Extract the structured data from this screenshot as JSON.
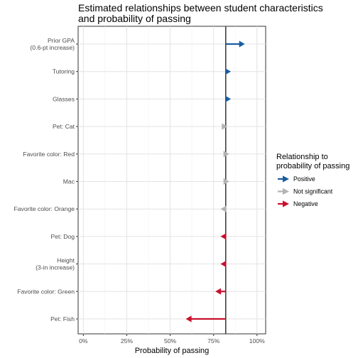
{
  "chart_data": {
    "type": "arrow-dot",
    "title": "Estimated relationships between student characteristics\nand probability of passing",
    "xlabel": "Probability of passing",
    "ylabel": "",
    "xlim": [
      -0.03,
      1.05
    ],
    "x_ticks": [
      {
        "value": 0,
        "label": "0%"
      },
      {
        "value": 0.25,
        "label": "25%"
      },
      {
        "value": 0.5,
        "label": "50%"
      },
      {
        "value": 0.75,
        "label": "75%"
      },
      {
        "value": 1.0,
        "label": "100%"
      }
    ],
    "baseline": 0.82,
    "grid": true,
    "legend_position": "right",
    "legend_title": "Relationship to\nprobability of passing",
    "legend": [
      {
        "key": "positive",
        "label": "Positive",
        "color": "#1a5d9e"
      },
      {
        "key": "ns",
        "label": "Not significant",
        "color": "#b3b3b3"
      },
      {
        "key": "negative",
        "label": "Negative",
        "color": "#c8102e"
      }
    ],
    "categories": [
      "Prior GPA\n(0.6-pt increase)",
      "Tutoring",
      "Glasses",
      "Pet: Cat",
      "Favorite color: Red",
      "Mac",
      "Favorite color: Orange",
      "Pet: Dog",
      "Height\n(3-in increase)",
      "Favorite color: Green",
      "Pet: Fish"
    ],
    "series": [
      {
        "category": "Prior GPA\n(0.6-pt increase)",
        "start": 0.82,
        "end": 0.93,
        "relationship": "positive"
      },
      {
        "category": "Tutoring",
        "start": 0.82,
        "end": 0.85,
        "relationship": "positive"
      },
      {
        "category": "Glasses",
        "start": 0.82,
        "end": 0.85,
        "relationship": "positive"
      },
      {
        "category": "Pet: Cat",
        "start": 0.82,
        "end": 0.83,
        "relationship": "ns"
      },
      {
        "category": "Favorite color: Red",
        "start": 0.82,
        "end": 0.84,
        "relationship": "ns"
      },
      {
        "category": "Mac",
        "start": 0.82,
        "end": 0.84,
        "relationship": "ns"
      },
      {
        "category": "Favorite color: Orange",
        "start": 0.82,
        "end": 0.79,
        "relationship": "ns"
      },
      {
        "category": "Pet: Dog",
        "start": 0.82,
        "end": 0.79,
        "relationship": "negative"
      },
      {
        "category": "Height\n(3-in increase)",
        "start": 0.82,
        "end": 0.79,
        "relationship": "negative"
      },
      {
        "category": "Favorite color: Green",
        "start": 0.82,
        "end": 0.76,
        "relationship": "negative"
      },
      {
        "category": "Pet: Fish",
        "start": 0.82,
        "end": 0.59,
        "relationship": "negative"
      }
    ]
  }
}
